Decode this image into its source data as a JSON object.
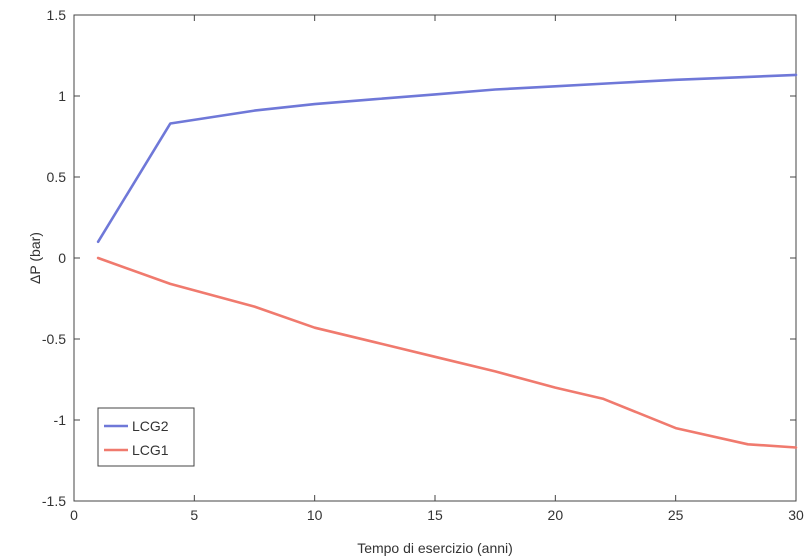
{
  "chart_data": {
    "type": "line",
    "title": "",
    "xlabel": "Tempo di esercizio (anni)",
    "ylabel": "ΔP (bar)",
    "xlim": [
      0,
      30
    ],
    "ylim": [
      -1.5,
      1.5
    ],
    "xticks": [
      0,
      5,
      10,
      15,
      20,
      25,
      30
    ],
    "yticks": [
      -1.5,
      -1,
      -0.5,
      0,
      0.5,
      1,
      1.5
    ],
    "xtick_labels": [
      "0",
      "5",
      "10",
      "15",
      "20",
      "25",
      "30"
    ],
    "ytick_labels": [
      "-1.5",
      "-1",
      "-0.5",
      "0",
      "0.5",
      "1",
      "1.5"
    ],
    "grid": false,
    "legend_position": "bottom-left",
    "series": [
      {
        "name": "LCG2",
        "color": "#6f78d8",
        "x": [
          1,
          4,
          7.5,
          10,
          12.5,
          15,
          17.5,
          20,
          22.5,
          25,
          27.5,
          30
        ],
        "y": [
          0.1,
          0.83,
          0.91,
          0.95,
          0.98,
          1.01,
          1.04,
          1.06,
          1.08,
          1.1,
          1.115,
          1.13
        ]
      },
      {
        "name": "LCG1",
        "color": "#f07a6e",
        "x": [
          1,
          4,
          7.5,
          10,
          12.5,
          15,
          17.5,
          20,
          22,
          25,
          28,
          30
        ],
        "y": [
          0,
          -0.16,
          -0.3,
          -0.43,
          -0.52,
          -0.61,
          -0.7,
          -0.8,
          -0.87,
          -1.05,
          -1.15,
          -1.17
        ]
      }
    ]
  }
}
